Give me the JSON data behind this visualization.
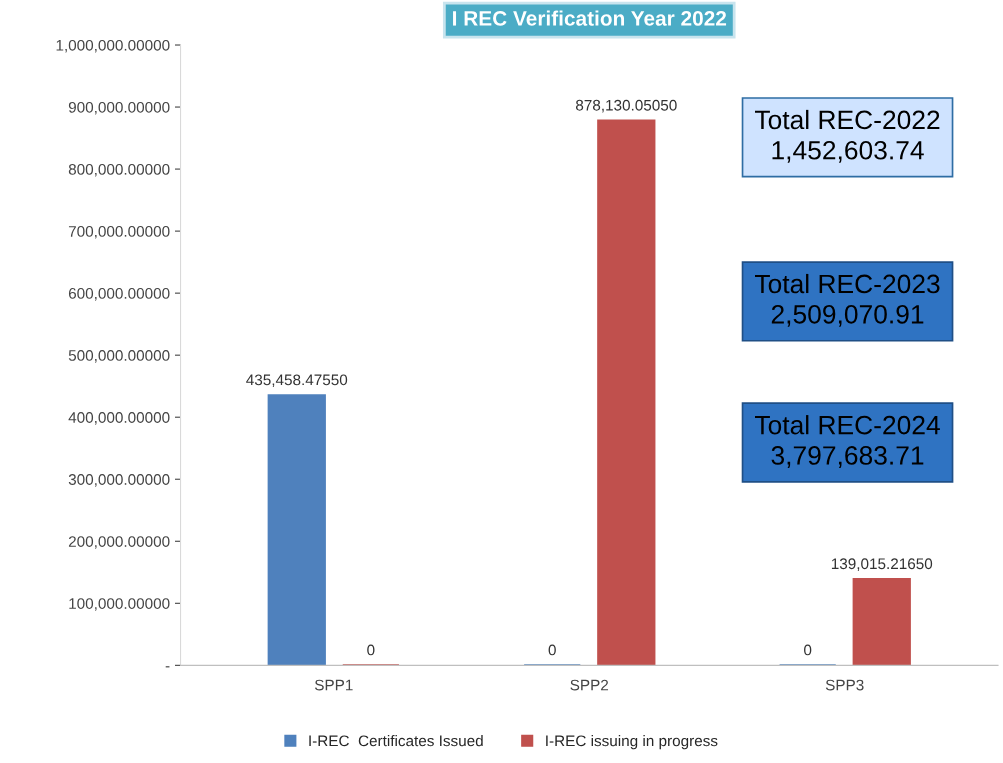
{
  "chart_data": {
    "type": "bar",
    "title": "I REC Verification Year 2022",
    "categories": [
      "SPP1",
      "SPP2",
      "SPP3"
    ],
    "series": [
      {
        "name": "I-REC  Certificates Issued",
        "color": "#4f81bd",
        "values": [
          435458.4755,
          0,
          0
        ],
        "value_labels": [
          "435,458.47550",
          "0",
          "0"
        ]
      },
      {
        "name": "I-REC issuing in progress",
        "color": "#c0504d",
        "values": [
          0,
          878130.0505,
          139015.2165
        ],
        "value_labels": [
          "0",
          "878,130.05050",
          "139,015.21650"
        ]
      }
    ],
    "ylim": [
      0,
      1000000
    ],
    "yticks": [
      {
        "value": 0,
        "label": "-"
      },
      {
        "value": 100000,
        "label": "100,000.00000"
      },
      {
        "value": 200000,
        "label": "200,000.00000"
      },
      {
        "value": 300000,
        "label": "300,000.00000"
      },
      {
        "value": 400000,
        "label": "400,000.00000"
      },
      {
        "value": 500000,
        "label": "500,000.00000"
      },
      {
        "value": 600000,
        "label": "600,000.00000"
      },
      {
        "value": 700000,
        "label": "700,000.00000"
      },
      {
        "value": 800000,
        "label": "800,000.00000"
      },
      {
        "value": 900000,
        "label": "900,000.00000"
      },
      {
        "value": 1000000,
        "label": "1,000,000.00000"
      }
    ],
    "grid": false,
    "legend": "bottom",
    "annotations": [
      "Total REC-2022\n1,452,603.74",
      "Total REC-2023\n2,509,070.91",
      "Total REC-2024\n3,797,683.71"
    ]
  }
}
